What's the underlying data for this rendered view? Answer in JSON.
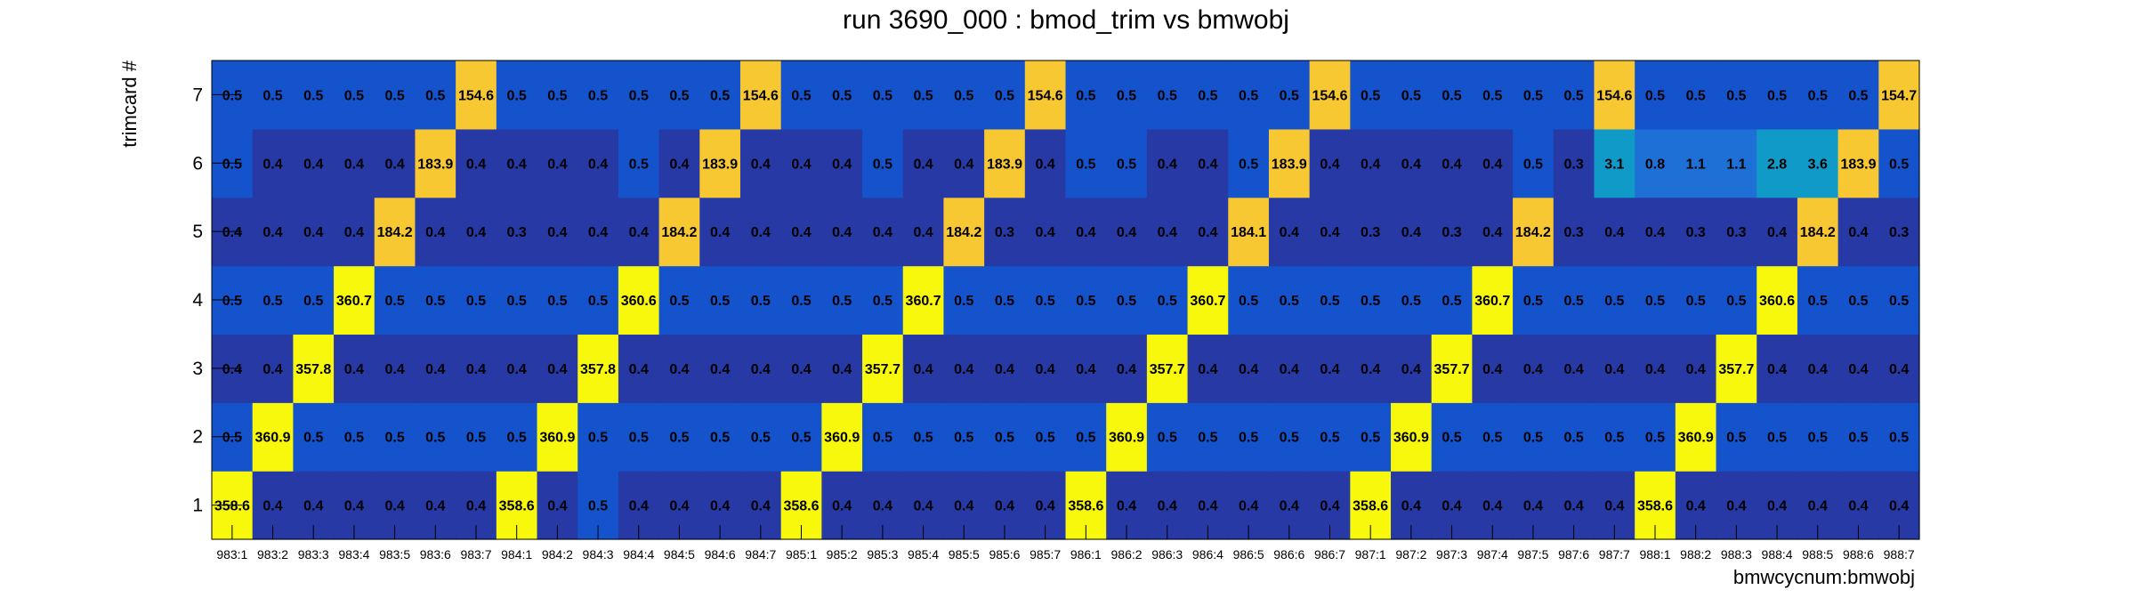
{
  "chart_data": {
    "type": "heatmap",
    "title": "run 3690_000 : bmod_trim vs bmwobj",
    "xlabel": "bmwcycnum:bmwobj",
    "ylabel": "trimcard #",
    "x_categories": [
      "983:1",
      "983:2",
      "983:3",
      "983:4",
      "983:5",
      "983:6",
      "983:7",
      "984:1",
      "984:2",
      "984:3",
      "984:4",
      "984:5",
      "984:6",
      "984:7",
      "985:1",
      "985:2",
      "985:3",
      "985:4",
      "985:5",
      "985:6",
      "985:7",
      "986:1",
      "986:2",
      "986:3",
      "986:4",
      "986:5",
      "986:6",
      "986:7",
      "987:1",
      "987:2",
      "987:3",
      "987:4",
      "987:5",
      "987:6",
      "987:7",
      "988:1",
      "988:2",
      "988:3",
      "988:4",
      "988:5",
      "988:6",
      "988:7"
    ],
    "y_categories": [
      "1",
      "2",
      "3",
      "4",
      "5",
      "6",
      "7"
    ],
    "values": [
      [
        "358.6",
        "0.4",
        "0.4",
        "0.4",
        "0.4",
        "0.4",
        "0.4",
        "358.6",
        "0.4",
        "0.5",
        "0.4",
        "0.4",
        "0.4",
        "0.4",
        "358.6",
        "0.4",
        "0.4",
        "0.4",
        "0.4",
        "0.4",
        "0.4",
        "358.6",
        "0.4",
        "0.4",
        "0.4",
        "0.4",
        "0.4",
        "0.4",
        "358.6",
        "0.4",
        "0.4",
        "0.4",
        "0.4",
        "0.4",
        "0.4",
        "358.6",
        "0.4",
        "0.4",
        "0.4",
        "0.4",
        "0.4",
        "0.4"
      ],
      [
        "0.5",
        "360.9",
        "0.5",
        "0.5",
        "0.5",
        "0.5",
        "0.5",
        "0.5",
        "360.9",
        "0.5",
        "0.5",
        "0.5",
        "0.5",
        "0.5",
        "0.5",
        "360.9",
        "0.5",
        "0.5",
        "0.5",
        "0.5",
        "0.5",
        "0.5",
        "360.9",
        "0.5",
        "0.5",
        "0.5",
        "0.5",
        "0.5",
        "0.5",
        "360.9",
        "0.5",
        "0.5",
        "0.5",
        "0.5",
        "0.5",
        "0.5",
        "360.9",
        "0.5",
        "0.5",
        "0.5",
        "0.5",
        "0.5"
      ],
      [
        "0.4",
        "0.4",
        "357.8",
        "0.4",
        "0.4",
        "0.4",
        "0.4",
        "0.4",
        "0.4",
        "357.8",
        "0.4",
        "0.4",
        "0.4",
        "0.4",
        "0.4",
        "0.4",
        "357.7",
        "0.4",
        "0.4",
        "0.4",
        "0.4",
        "0.4",
        "0.4",
        "357.7",
        "0.4",
        "0.4",
        "0.4",
        "0.4",
        "0.4",
        "0.4",
        "357.7",
        "0.4",
        "0.4",
        "0.4",
        "0.4",
        "0.4",
        "0.4",
        "357.7",
        "0.4",
        "0.4",
        "0.4",
        "0.4"
      ],
      [
        "0.5",
        "0.5",
        "0.5",
        "360.7",
        "0.5",
        "0.5",
        "0.5",
        "0.5",
        "0.5",
        "0.5",
        "360.6",
        "0.5",
        "0.5",
        "0.5",
        "0.5",
        "0.5",
        "0.5",
        "360.7",
        "0.5",
        "0.5",
        "0.5",
        "0.5",
        "0.5",
        "0.5",
        "360.7",
        "0.5",
        "0.5",
        "0.5",
        "0.5",
        "0.5",
        "0.5",
        "360.7",
        "0.5",
        "0.5",
        "0.5",
        "0.5",
        "0.5",
        "0.5",
        "360.6",
        "0.5",
        "0.5",
        "0.5"
      ],
      [
        "0.4",
        "0.4",
        "0.4",
        "0.4",
        "184.2",
        "0.4",
        "0.4",
        "0.3",
        "0.4",
        "0.4",
        "0.4",
        "184.2",
        "0.4",
        "0.4",
        "0.4",
        "0.4",
        "0.4",
        "0.4",
        "184.2",
        "0.3",
        "0.4",
        "0.4",
        "0.4",
        "0.4",
        "0.4",
        "184.1",
        "0.4",
        "0.4",
        "0.3",
        "0.4",
        "0.3",
        "0.4",
        "184.2",
        "0.3",
        "0.4",
        "0.4",
        "0.3",
        "0.3",
        "0.4",
        "184.2",
        "0.4",
        "0.3"
      ],
      [
        "0.5",
        "0.4",
        "0.4",
        "0.4",
        "0.4",
        "183.9",
        "0.4",
        "0.4",
        "0.4",
        "0.4",
        "0.5",
        "0.4",
        "183.9",
        "0.4",
        "0.4",
        "0.4",
        "0.5",
        "0.4",
        "0.4",
        "183.9",
        "0.4",
        "0.5",
        "0.5",
        "0.4",
        "0.4",
        "0.5",
        "183.9",
        "0.4",
        "0.4",
        "0.4",
        "0.4",
        "0.4",
        "0.5",
        "0.3",
        "3.1",
        "0.8",
        "1.1",
        "1.1",
        "2.8",
        "3.6",
        "183.9",
        "0.5"
      ],
      [
        "0.5",
        "0.5",
        "0.5",
        "0.5",
        "0.5",
        "0.5",
        "154.6",
        "0.5",
        "0.5",
        "0.5",
        "0.5",
        "0.5",
        "0.5",
        "154.6",
        "0.5",
        "0.5",
        "0.5",
        "0.5",
        "0.5",
        "0.5",
        "154.6",
        "0.5",
        "0.5",
        "0.5",
        "0.5",
        "0.5",
        "0.5",
        "154.6",
        "0.5",
        "0.5",
        "0.5",
        "0.5",
        "0.5",
        "0.5",
        "154.6",
        "0.5",
        "0.5",
        "0.5",
        "0.5",
        "0.5",
        "0.5",
        "154.7"
      ]
    ],
    "palette": {
      "yellow": "#f8f80c",
      "gold": "#f8c832",
      "cyan": "#0f9ac7",
      "blue_mid": "#1e70d6",
      "blue": "#1553cc",
      "navy": "#2639a4"
    },
    "grid": false,
    "legend": "none"
  }
}
